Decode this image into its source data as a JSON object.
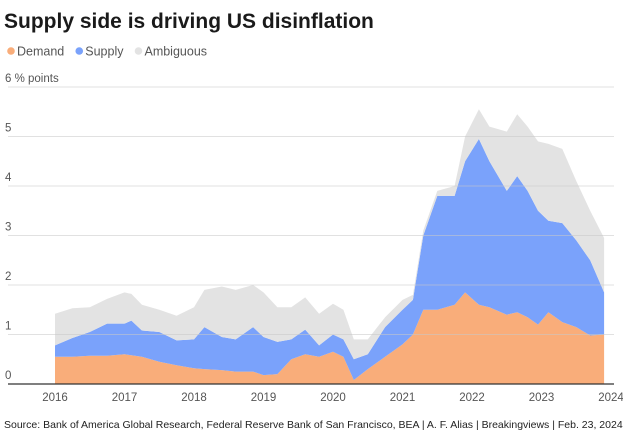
{
  "chart_data": {
    "type": "area",
    "stacked": true,
    "title": "Supply side is driving US disinflation",
    "ylabel": "% points",
    "ylim": [
      0,
      6
    ],
    "yticks": [
      0,
      1,
      2,
      3,
      4,
      5,
      6
    ],
    "ytick_labels": [
      "0",
      "1",
      "2",
      "3",
      "4",
      "5",
      "6 % points"
    ],
    "xlim": [
      2016,
      2024
    ],
    "xticks": [
      "2016",
      "2017",
      "2018",
      "2019",
      "2020",
      "2021",
      "2022",
      "2023",
      "2024"
    ],
    "grid": true,
    "legend_placement": "top-left",
    "x": [
      2016.0,
      2016.25,
      2016.5,
      2016.75,
      2017.0,
      2017.1,
      2017.25,
      2017.5,
      2017.75,
      2018.0,
      2018.15,
      2018.4,
      2018.6,
      2018.85,
      2019.0,
      2019.2,
      2019.4,
      2019.6,
      2019.8,
      2020.0,
      2020.15,
      2020.3,
      2020.5,
      2020.75,
      2021.0,
      2021.15,
      2021.3,
      2021.5,
      2021.75,
      2021.9,
      2022.1,
      2022.25,
      2022.5,
      2022.65,
      2022.8,
      2022.95,
      2023.1,
      2023.3,
      2023.5,
      2023.7,
      2023.9
    ],
    "series": [
      {
        "name": "Demand",
        "color": "#f9ad7a",
        "values": [
          0.55,
          0.55,
          0.57,
          0.57,
          0.6,
          0.58,
          0.55,
          0.45,
          0.38,
          0.32,
          0.3,
          0.28,
          0.25,
          0.25,
          0.18,
          0.2,
          0.5,
          0.6,
          0.55,
          0.65,
          0.55,
          0.08,
          0.3,
          0.55,
          0.8,
          1.0,
          1.5,
          1.5,
          1.6,
          1.85,
          1.6,
          1.55,
          1.4,
          1.45,
          1.35,
          1.2,
          1.45,
          1.25,
          1.15,
          0.98,
          1.0
        ]
      },
      {
        "name": "Supply",
        "color": "#7aa2fb",
        "values": [
          0.23,
          0.38,
          0.48,
          0.65,
          0.62,
          0.7,
          0.53,
          0.6,
          0.5,
          0.58,
          0.85,
          0.67,
          0.65,
          0.9,
          0.77,
          0.65,
          0.4,
          0.5,
          0.23,
          0.35,
          0.35,
          0.42,
          0.3,
          0.6,
          0.7,
          0.7,
          1.5,
          2.3,
          2.2,
          2.65,
          3.35,
          2.95,
          2.5,
          2.75,
          2.55,
          2.3,
          1.85,
          2.0,
          1.75,
          1.52,
          0.85
        ]
      },
      {
        "name": "Ambiguous",
        "color": "#e3e3e3",
        "values": [
          0.64,
          0.6,
          0.5,
          0.5,
          0.63,
          0.54,
          0.52,
          0.45,
          0.5,
          0.65,
          0.75,
          1.02,
          1.0,
          0.85,
          0.9,
          0.7,
          0.65,
          0.65,
          0.64,
          0.62,
          0.6,
          0.4,
          0.3,
          0.2,
          0.2,
          0.1,
          0.1,
          0.1,
          0.2,
          0.5,
          0.6,
          0.7,
          1.2,
          1.25,
          1.3,
          1.4,
          1.55,
          1.5,
          1.2,
          1.0,
          1.1
        ]
      }
    ],
    "source": "Source: Bank of America Global Research, Federal Reserve Bank of San Francisco, BEA | A. F. Alias | Breakingviews | Feb. 23, 2024"
  }
}
